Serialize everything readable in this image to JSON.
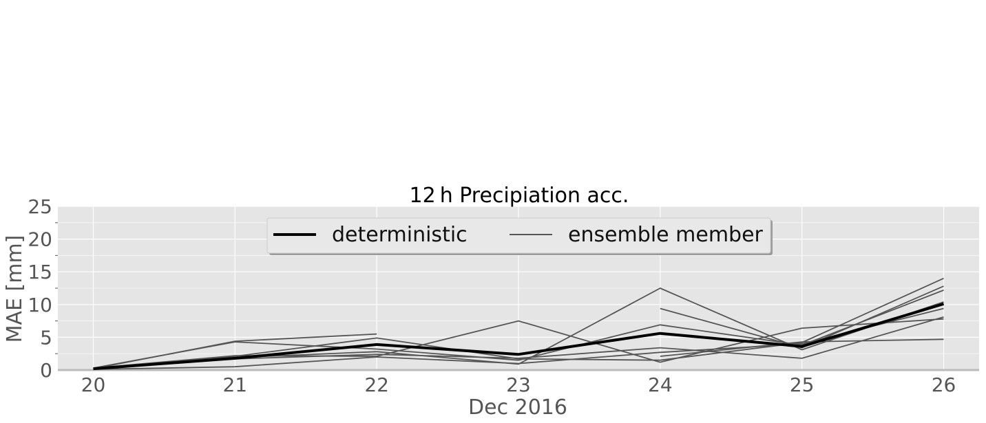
{
  "chart_data": {
    "type": "line",
    "title": "12 h Precipiation acc.",
    "xlabel": "Dec 2016",
    "ylabel": "MAE [mm]",
    "x": [
      20,
      21,
      22,
      23,
      24,
      25,
      26
    ],
    "x_tick_labels": [
      "20",
      "21",
      "22",
      "23",
      "24",
      "25",
      "26"
    ],
    "xlim": [
      19.75,
      26.25
    ],
    "ylim": [
      0,
      25
    ],
    "y_ticks": [
      0,
      5,
      10,
      15,
      20,
      25
    ],
    "y_tick_labels": [
      "0",
      "5",
      "10",
      "15",
      "20",
      "25"
    ],
    "grid": true,
    "legend": {
      "placement": "top-center",
      "entries": [
        "deterministic",
        "ensemble member"
      ]
    },
    "colors": {
      "deterministic": "#000000",
      "ensemble": "#555555",
      "plot_background": "#e5e5e5",
      "grid": "#ffffff"
    },
    "series": [
      {
        "name": "deterministic",
        "role": "deterministic",
        "values": [
          0.2,
          1.8,
          3.9,
          2.4,
          5.6,
          3.6,
          10.1
        ]
      },
      {
        "role": "ensemble",
        "values": [
          0.3,
          4.3,
          3.2,
          1.5,
          6.9,
          3.8,
          12.2
        ]
      },
      {
        "role": "ensemble",
        "values": [
          0.1,
          2.1,
          4.9,
          1.7,
          1.5,
          4.2,
          14.0
        ]
      },
      {
        "role": "ensemble",
        "values": [
          0.2,
          1.9,
          2.8,
          0.9,
          12.5,
          3.1,
          10.4
        ]
      },
      {
        "role": "ensemble",
        "values": [
          0.3,
          2.2,
          2.1,
          7.5,
          1.2,
          6.4,
          7.8
        ]
      },
      {
        "role": "ensemble",
        "values": [
          0.2,
          4.4,
          5.5,
          null,
          9.4,
          3.4,
          12.8
        ]
      },
      {
        "role": "ensemble",
        "values": [
          0.1,
          0.5,
          2.0,
          1.0,
          2.7,
          4.0,
          9.4
        ]
      },
      {
        "role": "ensemble",
        "values": [
          0.2,
          1.7,
          2.4,
          1.8,
          3.4,
          1.8,
          8.1
        ]
      },
      {
        "role": "ensemble",
        "values": [
          null,
          null,
          null,
          null,
          2.1,
          4.3,
          4.7
        ]
      }
    ]
  }
}
